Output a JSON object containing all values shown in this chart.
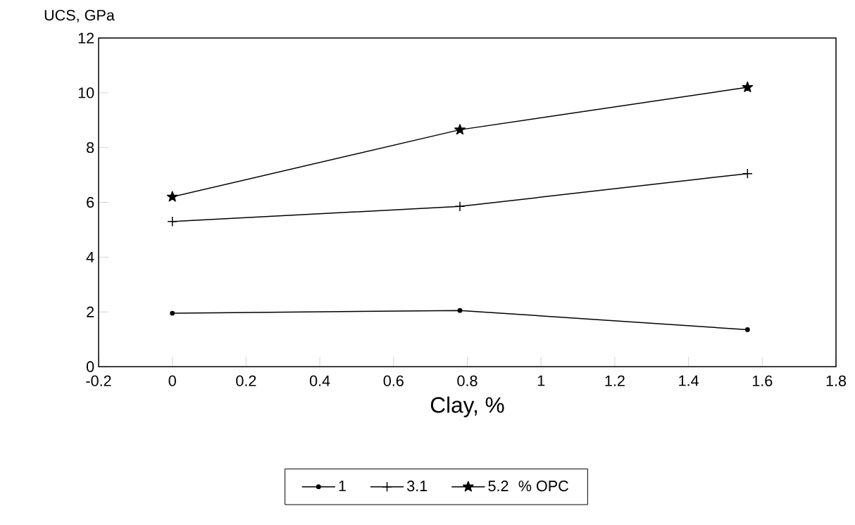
{
  "chart_data": {
    "type": "line",
    "xlabel": "Clay, %",
    "ylabel": "UCS, GPa",
    "legend_title": "% OPC",
    "legend": "bottom",
    "x": [
      0,
      0.78,
      1.56
    ],
    "xlim": [
      -0.2,
      1.8
    ],
    "xticks": [
      -0.2,
      0,
      0.2,
      0.4,
      0.6,
      0.8,
      1,
      1.2,
      1.4,
      1.6,
      1.8
    ],
    "ylim": [
      0,
      12
    ],
    "yticks": [
      0,
      2,
      4,
      6,
      8,
      10,
      12
    ],
    "series": [
      {
        "name": "1",
        "color": "#000000",
        "marker": "circle",
        "values": [
          1.95,
          2.05,
          1.35
        ]
      },
      {
        "name": "3.1",
        "color": "#000000",
        "marker": "cross",
        "values": [
          5.3,
          5.85,
          7.05
        ]
      },
      {
        "name": "5.2",
        "color": "#000000",
        "marker": "star",
        "values": [
          6.2,
          8.65,
          10.2
        ]
      }
    ]
  }
}
